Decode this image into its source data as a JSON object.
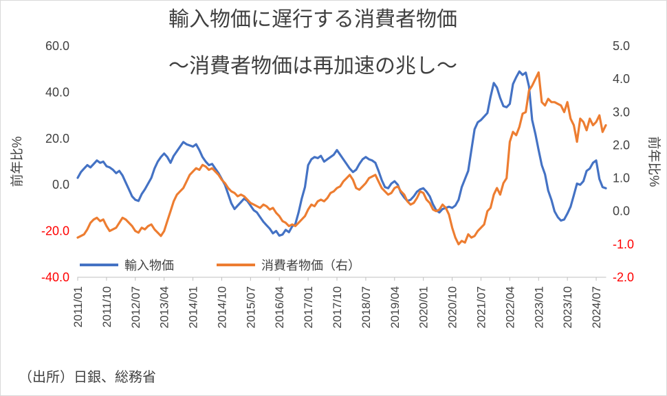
{
  "title": {
    "line1": "輸入物価に遅行する消費者物価",
    "line2": "～消費者物価は再加速の兆し～"
  },
  "source_note": "（出所）日銀、総務省",
  "legend": [
    {
      "label": "輸入物価",
      "color": "#4472C4"
    },
    {
      "label": "消費者物価（右）",
      "color": "#ED7D31"
    }
  ],
  "colors": {
    "import_price_line": "#4472C4",
    "cpi_line": "#ED7D31",
    "axis_text": "#404040",
    "negative_tick": "#FF0000",
    "axis_line": "#BFBFBF"
  },
  "chart_data": {
    "type": "line",
    "title": "輸入物価に遅行する消費者物価",
    "subtitle": "～消費者物価は再加速の兆し～",
    "grid": false,
    "legend_position": "inside-bottom-left",
    "x_frequency": "monthly",
    "x_range": [
      "2011/01",
      "2024/10"
    ],
    "x_tick_interval_months": 9,
    "x_tick_labels": [
      "2011/01",
      "2011/10",
      "2012/07",
      "2013/04",
      "2014/01",
      "2014/10",
      "2015/07",
      "2016/04",
      "2017/01",
      "2017/10",
      "2018/07",
      "2019/04",
      "2020/01",
      "2020/10",
      "2021/07",
      "2022/04",
      "2023/01",
      "2023/10",
      "2024/07"
    ],
    "left_axis": {
      "title": "前年比%",
      "min": -40,
      "max": 60,
      "tick_values": [
        60,
        40,
        20,
        0,
        -20,
        -40
      ],
      "tick_labels": [
        "60.0",
        "40.0",
        "20.0",
        "0.0",
        "-20.0",
        "-40.0"
      ]
    },
    "right_axis": {
      "title": "前年比%",
      "min": -2,
      "max": 5,
      "tick_values": [
        5,
        4,
        3,
        2,
        1,
        0,
        -1,
        -2
      ],
      "tick_labels": [
        "5.0",
        "4.0",
        "3.0",
        "2.0",
        "1.0",
        "0.0",
        "-1.0",
        "-2.0"
      ]
    },
    "series": [
      {
        "name": "輸入物価",
        "axis": "left",
        "color": "#4472C4",
        "values": [
          3,
          5.5,
          7,
          8.5,
          7.5,
          9,
          10.5,
          9.5,
          10,
          8,
          7.5,
          6.5,
          5,
          6,
          4,
          1,
          -2,
          -5,
          -6.5,
          -7,
          -4,
          -2,
          0.5,
          3,
          7,
          10,
          12,
          13.5,
          12,
          9.5,
          12.5,
          14.5,
          16.5,
          18.5,
          17.5,
          17,
          16.5,
          17.5,
          15,
          12,
          10,
          8.5,
          9,
          7,
          5,
          2.5,
          0,
          -4,
          -8,
          -10.5,
          -9,
          -7.5,
          -6,
          -7,
          -9,
          -11,
          -12,
          -14,
          -16,
          -17.5,
          -19,
          -21,
          -20,
          -22,
          -21.5,
          -19.5,
          -20.5,
          -18,
          -17,
          -12,
          -6,
          -1,
          8.5,
          11,
          12,
          11.5,
          12.5,
          10,
          11,
          12,
          13,
          15,
          13,
          11,
          9,
          7,
          5.5,
          6.5,
          9,
          11,
          12,
          11,
          10.5,
          9.5,
          6,
          2,
          -1,
          -1.5,
          0.5,
          1.5,
          0,
          -3.5,
          -5.5,
          -7,
          -6.5,
          -5,
          -3,
          -2,
          -1.5,
          -3,
          -5,
          -8.5,
          -11,
          -12,
          -10.5,
          -10,
          -9.5,
          -10,
          -9,
          -6.5,
          -1,
          2.5,
          6,
          15,
          24,
          27,
          28,
          29.5,
          31,
          38,
          44,
          42,
          37.5,
          34,
          33.5,
          35,
          43.5,
          46.5,
          49,
          47.5,
          48.5,
          42.5,
          28,
          22,
          15,
          8.5,
          4.5,
          -2.5,
          -6.5,
          -11.5,
          -14,
          -15.5,
          -15,
          -12.5,
          -9.5,
          -4.5,
          0.5,
          0,
          1.5,
          6,
          7,
          9.5,
          10.5,
          2.5,
          -1,
          -1.5
        ]
      },
      {
        "name": "消費者物価（右）",
        "axis": "right",
        "color": "#ED7D31",
        "values": [
          -0.8,
          -0.75,
          -0.7,
          -0.55,
          -0.35,
          -0.25,
          -0.2,
          -0.3,
          -0.25,
          -0.45,
          -0.6,
          -0.55,
          -0.5,
          -0.35,
          -0.2,
          -0.25,
          -0.35,
          -0.45,
          -0.6,
          -0.65,
          -0.5,
          -0.55,
          -0.45,
          -0.4,
          -0.55,
          -0.65,
          -0.75,
          -0.6,
          -0.3,
          0,
          0.3,
          0.5,
          0.6,
          0.7,
          0.9,
          1.1,
          1.2,
          1.3,
          1.25,
          1.4,
          1.35,
          1.25,
          1.3,
          1.2,
          1.1,
          0.95,
          0.85,
          0.7,
          0.6,
          0.55,
          0.45,
          0.5,
          0.45,
          0.35,
          0.25,
          0.2,
          0.15,
          0.1,
          0.2,
          0.15,
          0.05,
          0.1,
          -0.05,
          -0.15,
          -0.3,
          -0.35,
          -0.45,
          -0.4,
          -0.45,
          -0.35,
          -0.25,
          -0.15,
          0.05,
          0.2,
          0.15,
          0.3,
          0.35,
          0.3,
          0.4,
          0.55,
          0.6,
          0.7,
          0.75,
          0.9,
          1,
          1.1,
          0.95,
          0.7,
          0.65,
          0.75,
          0.85,
          1,
          1.05,
          1.1,
          0.9,
          0.7,
          0.6,
          0.5,
          0.55,
          0.7,
          0.75,
          0.6,
          0.5,
          0.3,
          0.2,
          0.25,
          0.4,
          0.6,
          0.55,
          0.35,
          0.25,
          0.05,
          0,
          0.05,
          0.2,
          0.1,
          -0.1,
          -0.5,
          -0.8,
          -1,
          -0.9,
          -0.95,
          -0.7,
          -0.8,
          -0.75,
          -0.6,
          -0.5,
          -0.4,
          0,
          0.1,
          0.5,
          0.7,
          0.5,
          0.85,
          1,
          2.1,
          2.4,
          2.3,
          2.55,
          2.95,
          3,
          3.65,
          3.8,
          4,
          4.2,
          3.3,
          3.2,
          3.4,
          3.3,
          3.3,
          3.25,
          3.2,
          3,
          3.3,
          2.8,
          2.6,
          2.1,
          2.8,
          2.7,
          2.45,
          2.8,
          2.6,
          2.7,
          2.9,
          2.4,
          2.6
        ]
      }
    ],
    "source_note": "（出所）日銀、総務省"
  }
}
